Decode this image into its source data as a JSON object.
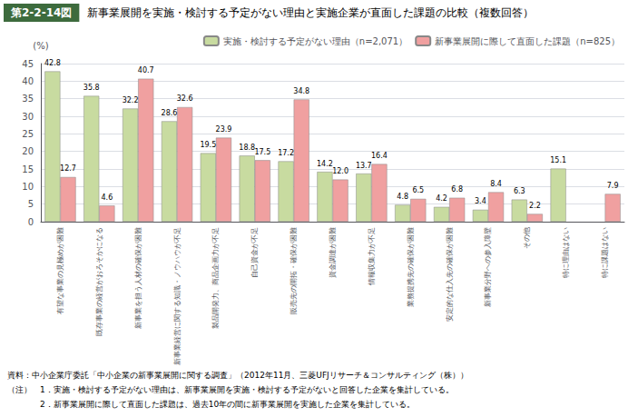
{
  "chart_data": {
    "type": "bar",
    "title": "第2-2-14図",
    "subtitle": "新事業展開を実施・検討する予定がない理由と実施企業が直面した課題の比較（複数回答）",
    "categories": [
      "有望な事業の見極めが困難",
      "既存事業の経営がおろそかになる",
      "新事業を担う人材の確保が困難",
      "新事業経営に関する知識・ノウハウが不足",
      "製品開発力、商品企画力が不足",
      "自己資金が不足",
      "販売先の開拓・確保が困難",
      "資金調達が困難",
      "情報収集力が不足",
      "業務提携先の確保が困難",
      "安定的な仕入先の確保が困難",
      "新事業分野への参入障壁",
      "その他",
      "特に理由はない",
      "特に課題はない"
    ],
    "series": [
      {
        "name": "実施・検討する予定がない理由（n=2,071）",
        "color": "#c8dba0",
        "values": [
          42.8,
          35.8,
          32.2,
          28.6,
          19.5,
          18.8,
          17.2,
          14.2,
          13.7,
          4.8,
          4.2,
          3.4,
          6.3,
          15.1,
          null
        ]
      },
      {
        "name": "新事業展開に際して直面した課題（n=825）",
        "color": "#f0a0a0",
        "values": [
          12.7,
          4.6,
          40.7,
          32.6,
          23.9,
          17.5,
          34.8,
          12.0,
          16.4,
          6.5,
          6.8,
          8.4,
          2.2,
          null,
          7.9
        ],
        "value_labels": [
          "12.7",
          "4.6",
          "40.7",
          "32.6",
          "23.9",
          "17.5",
          "34.8",
          "12.0",
          "16.4",
          "6.5",
          "6.8",
          "8.4",
          "2.2",
          null,
          "7.9"
        ]
      }
    ],
    "ylabel": "(%)",
    "ylim": [
      0,
      45
    ],
    "yticks": [
      0,
      5,
      10,
      15,
      20,
      25,
      30,
      35,
      40,
      45
    ],
    "grid": true,
    "legend": "upper right",
    "data_labels": true,
    "annotations": [
      "資料：中小企業庁委託「中小企業の新事業展開に関する調査」（2012年11月、三菱UFJリサーチ＆コンサルティング（株））",
      "（注）　1．実施・検討する予定がない理由は、新事業展開を実施・検討する予定がないと回答した企業を集計している。",
      "　　　　2．新事業展開に際して直面した課題は、過去10年の間に新事業展開を実施した企業を集計している。"
    ]
  }
}
